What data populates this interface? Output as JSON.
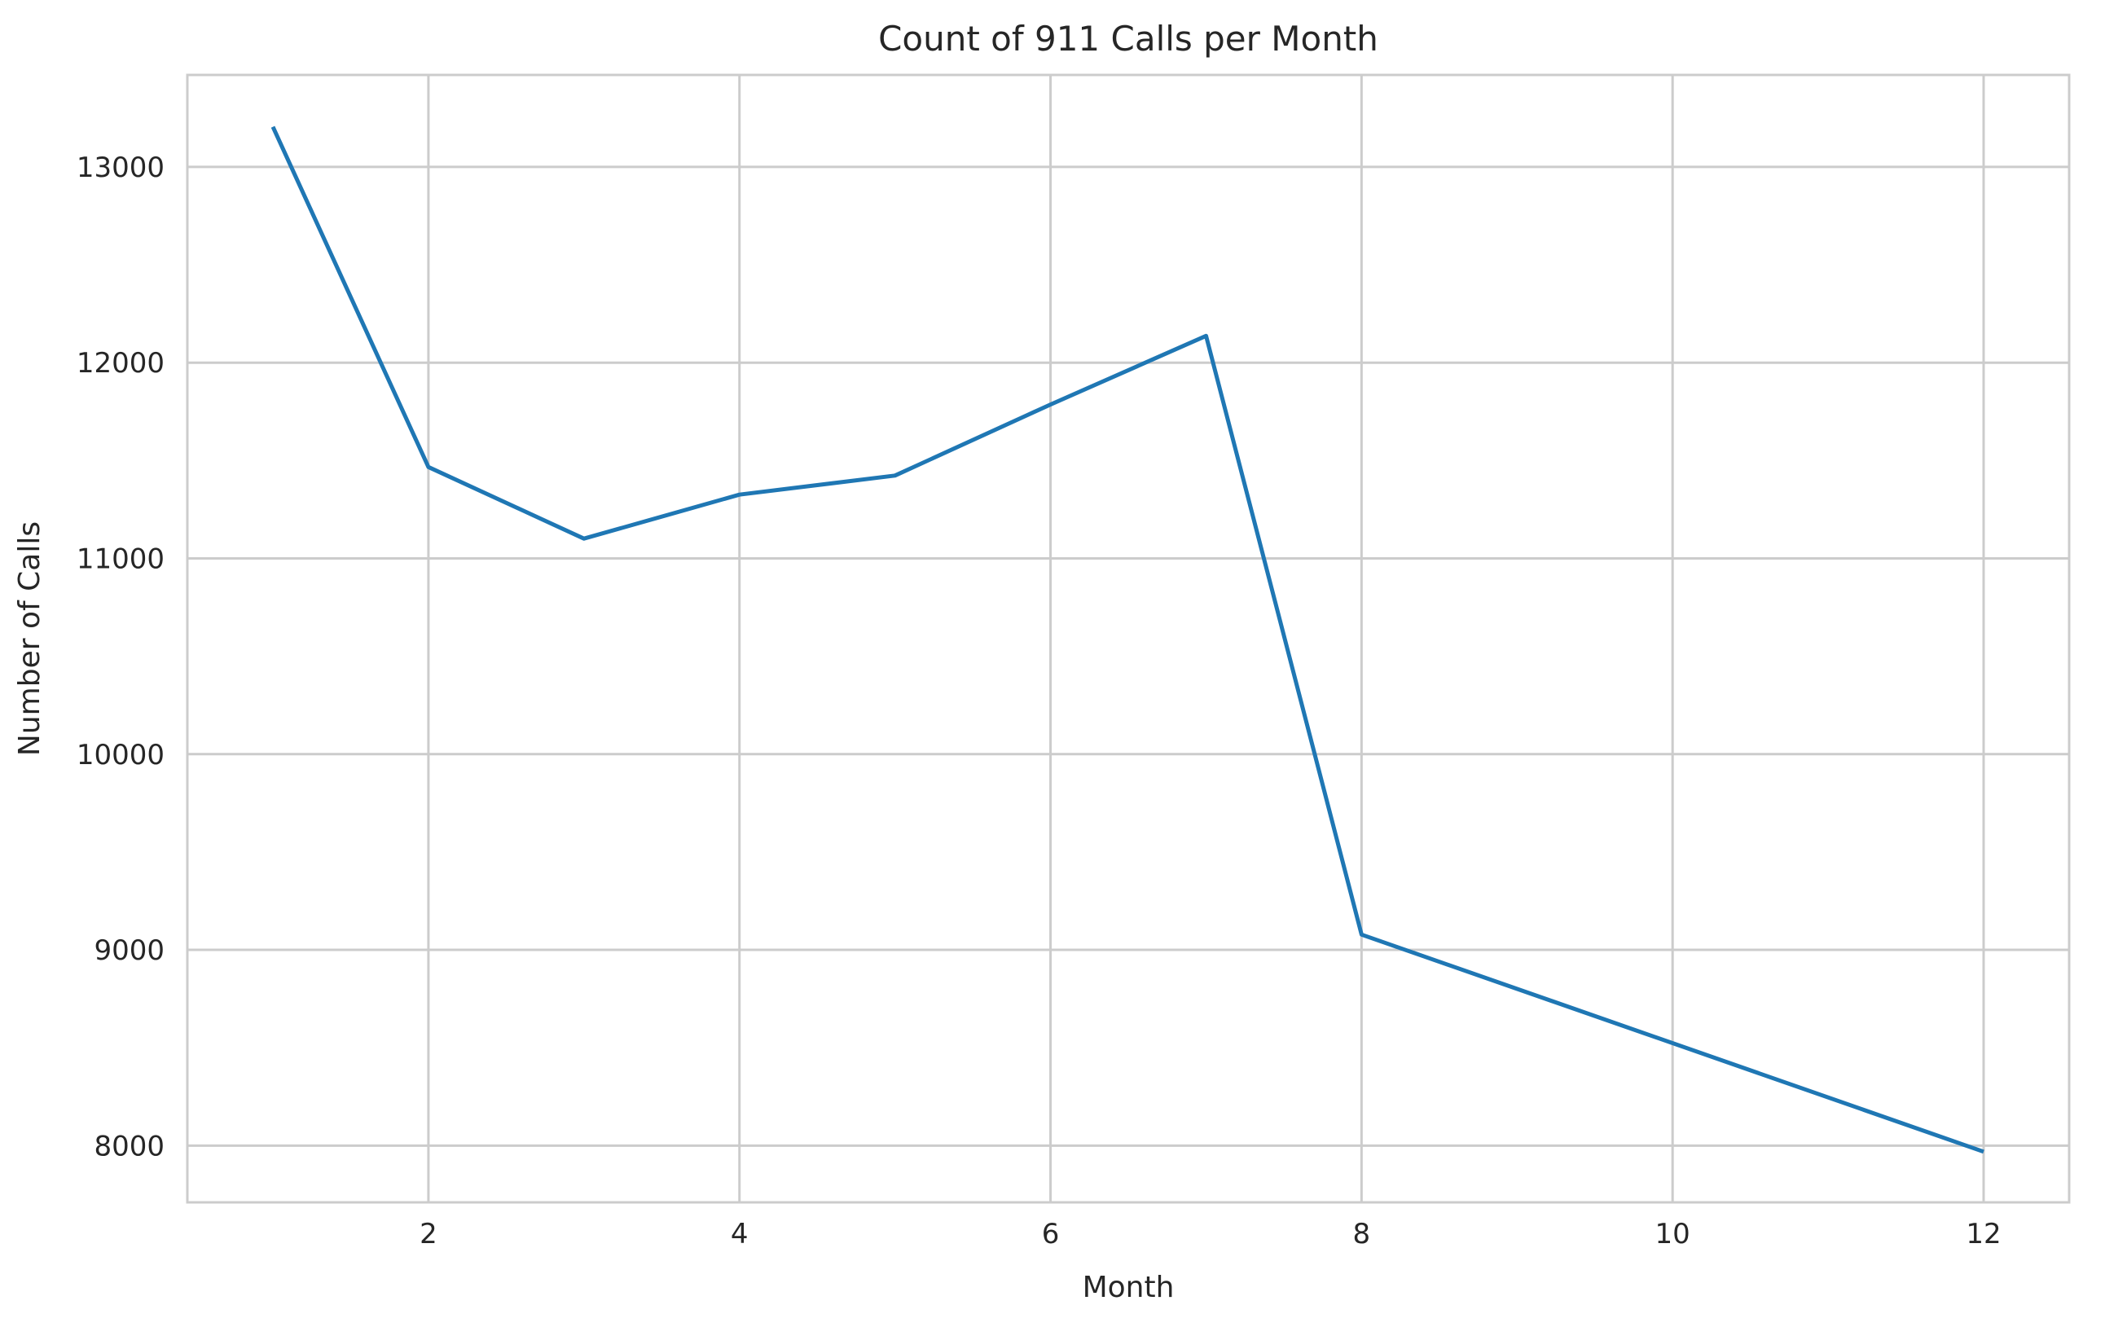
{
  "chart_data": {
    "type": "line",
    "title": "Count of 911 Calls per Month",
    "xlabel": "Month",
    "ylabel": "Number of Calls",
    "x": [
      1,
      2,
      3,
      4,
      5,
      6,
      7,
      8,
      12
    ],
    "series": [
      {
        "values": [
          13205,
          11467,
          11101,
          11326,
          11423,
          11786,
          12137,
          9078,
          7969
        ]
      }
    ],
    "xlim": [
      0.45,
      12.55
    ],
    "ylim": [
      7710,
      13470
    ],
    "xticks": [
      2,
      4,
      6,
      8,
      10,
      12
    ],
    "yticks": [
      8000,
      9000,
      10000,
      11000,
      12000,
      13000
    ],
    "grid": true,
    "line_color": "#1f77b4"
  }
}
